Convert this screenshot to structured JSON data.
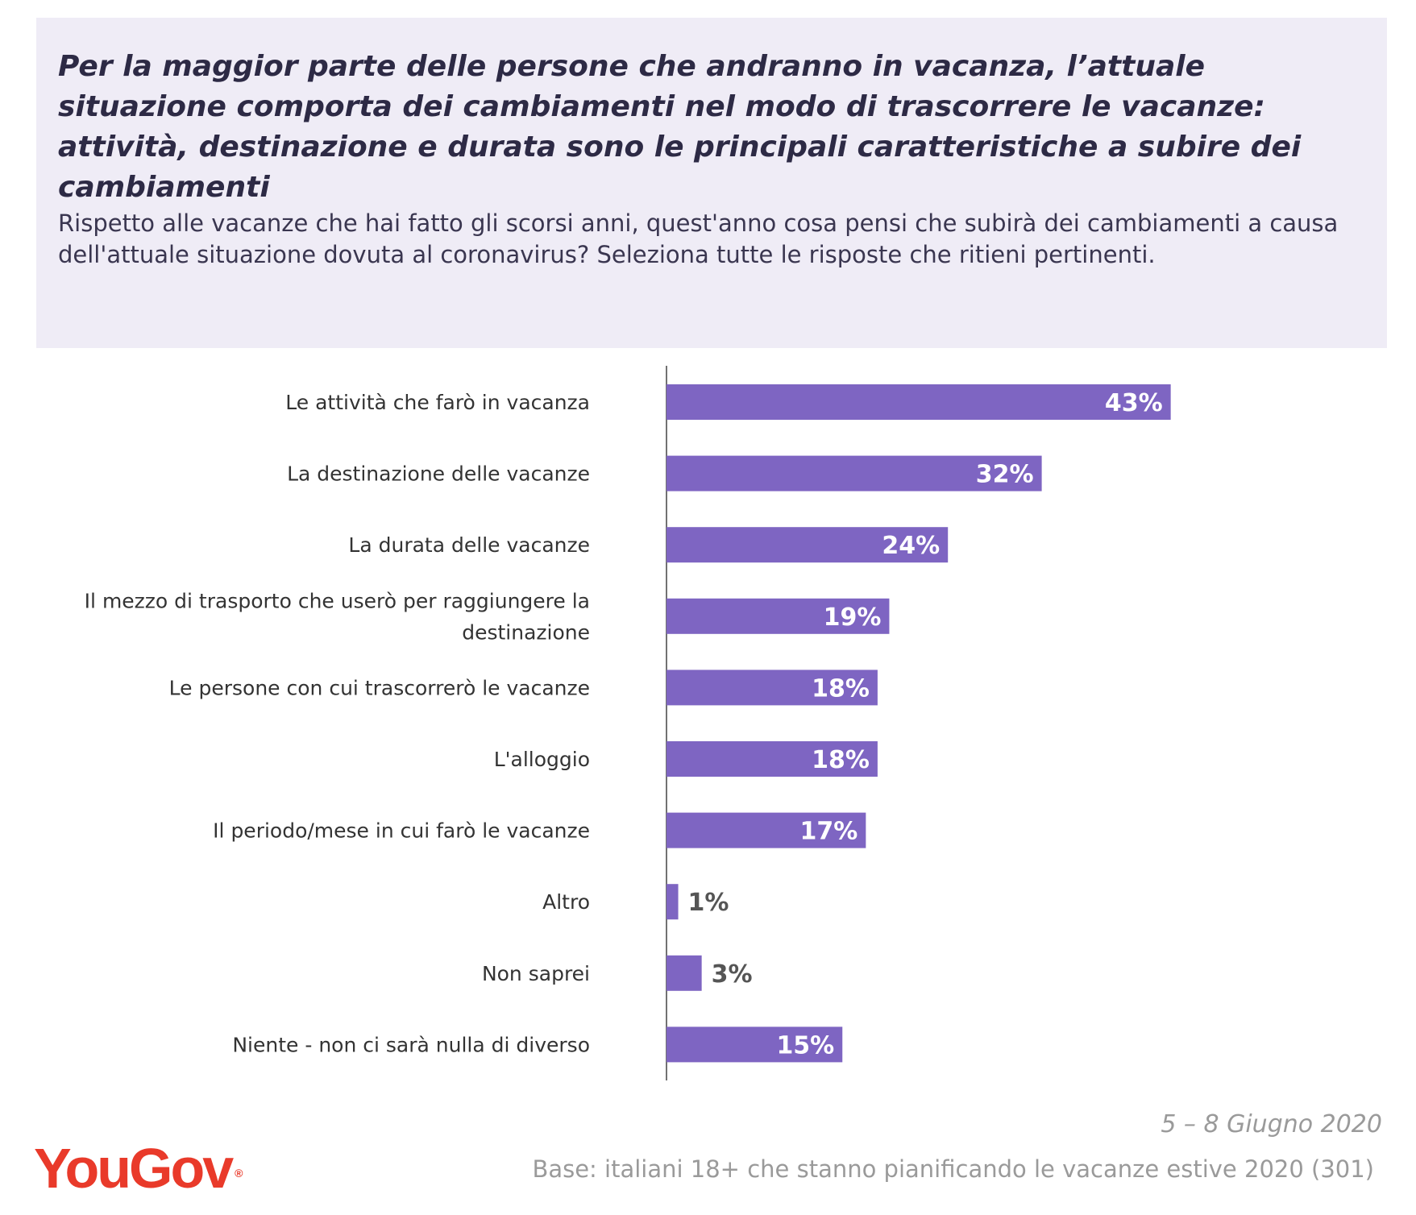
{
  "header": {
    "title": "Per la maggior parte delle persone che andranno in vacanza, l’attuale situazione comporta dei cambiamenti nel modo di trascorrere le vacanze: attività, destinazione e durata sono le principali caratteristiche a subire dei cambiamenti",
    "subtitle": "Rispetto alle vacanze che hai fatto gli scorsi anni, quest'anno cosa pensi che subirà dei cambiamenti a causa dell'attuale situazione dovuta al coronavirus? Seleziona tutte le risposte che ritieni pertinenti."
  },
  "chart_data": {
    "type": "bar",
    "orientation": "horizontal",
    "categories": [
      "Le attività che farò in vacanza",
      "La destinazione delle vacanze",
      "La durata delle vacanze",
      "Il mezzo di trasporto che userò per raggiungere la destinazione",
      "Le persone con cui trascorrerò le vacanze",
      "L'alloggio",
      "Il periodo/mese in cui farò le vacanze",
      "Altro",
      "Non saprei",
      "Niente - non ci sarà nulla di diverso"
    ],
    "values": [
      43,
      32,
      24,
      19,
      18,
      18,
      17,
      1,
      3,
      15
    ],
    "value_labels": [
      "43%",
      "32%",
      "24%",
      "19%",
      "18%",
      "18%",
      "17%",
      "1%",
      "3%",
      "15%"
    ],
    "xlim": [
      0,
      50
    ],
    "grid": false,
    "bar_color": "#7e65c2"
  },
  "footer": {
    "date": "5 – 8 Giugno 2020",
    "base": "Base: italiani 18+ che stanno pianificando le vacanze estive 2020 (301)",
    "logo": "YouGov",
    "logo_mark": "®",
    "logo_color": "#e93a2a"
  }
}
